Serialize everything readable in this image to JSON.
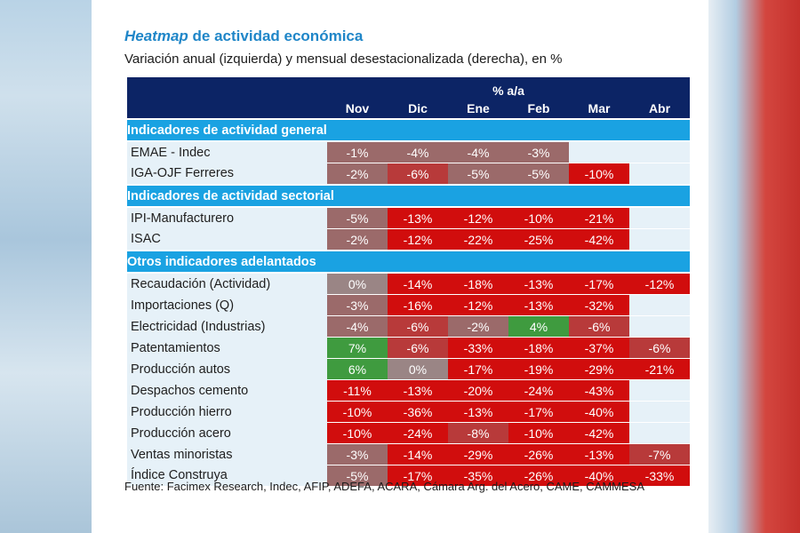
{
  "header": {
    "title_italic": "Heatmap",
    "title_rest": " de actividad económica",
    "subtitle": "Variación anual (izquierda) y mensual desestacionalizada (derecha), en %"
  },
  "chart_data": {
    "type": "heatmap",
    "unit_label": "% a/a",
    "columns": [
      "Nov",
      "Dic",
      "Ene",
      "Feb",
      "Mar",
      "Abr"
    ],
    "sections": [
      {
        "name": "Indicadores de actividad general",
        "rows": [
          {
            "label": "EMAE - Indec",
            "values": [
              -1,
              -4,
              -4,
              -3,
              null,
              null
            ]
          },
          {
            "label": "IGA-OJF Ferreres",
            "values": [
              -2,
              -6,
              -5,
              -5,
              -10,
              null
            ]
          }
        ]
      },
      {
        "name": "Indicadores de actividad sectorial",
        "rows": [
          {
            "label": "IPI-Manufacturero",
            "values": [
              -5,
              -13,
              -12,
              -10,
              -21,
              null
            ]
          },
          {
            "label": "ISAC",
            "values": [
              -2,
              -12,
              -22,
              -25,
              -42,
              null
            ]
          }
        ]
      },
      {
        "name": "Otros indicadores adelantados",
        "rows": [
          {
            "label": "Recaudación (Actividad)",
            "values": [
              0,
              -14,
              -18,
              -13,
              -17,
              -12
            ]
          },
          {
            "label": "Importaciones (Q)",
            "values": [
              -3,
              -16,
              -12,
              -13,
              -32,
              null
            ]
          },
          {
            "label": "Electricidad (Industrias)",
            "values": [
              -4,
              -6,
              -2,
              4,
              -6,
              null
            ]
          },
          {
            "label": "Patentamientos",
            "values": [
              7,
              -6,
              -33,
              -18,
              -37,
              -6
            ]
          },
          {
            "label": "Producción autos",
            "values": [
              6,
              0,
              -17,
              -19,
              -29,
              -21
            ]
          },
          {
            "label": "Despachos cemento",
            "values": [
              -11,
              -13,
              -20,
              -24,
              -43,
              null
            ]
          },
          {
            "label": "Producción hierro",
            "values": [
              -10,
              -36,
              -13,
              -17,
              -40,
              null
            ]
          },
          {
            "label": "Producción acero",
            "values": [
              -10,
              -24,
              -8,
              -10,
              -42,
              null
            ]
          },
          {
            "label": "Ventas minoristas",
            "values": [
              -3,
              -14,
              -29,
              -26,
              -13,
              -7
            ]
          },
          {
            "label": "Índice Construya",
            "values": [
              -5,
              -17,
              -35,
              -26,
              -40,
              -33
            ]
          }
        ]
      }
    ],
    "colors": {
      "positive": "#3f9b3f",
      "zero": "#9a8585",
      "mild_negative": "#9b6a6a",
      "mid_negative": "#b83a3a",
      "strong_negative": "#d10d0d",
      "empty": "#e6f1f8"
    }
  },
  "footer": {
    "source": "Fuente: Facimex Research, Indec, AFIP, ADEFA, ACARA, Cámara Arg. del Acero, CAME, CAMMESA"
  }
}
